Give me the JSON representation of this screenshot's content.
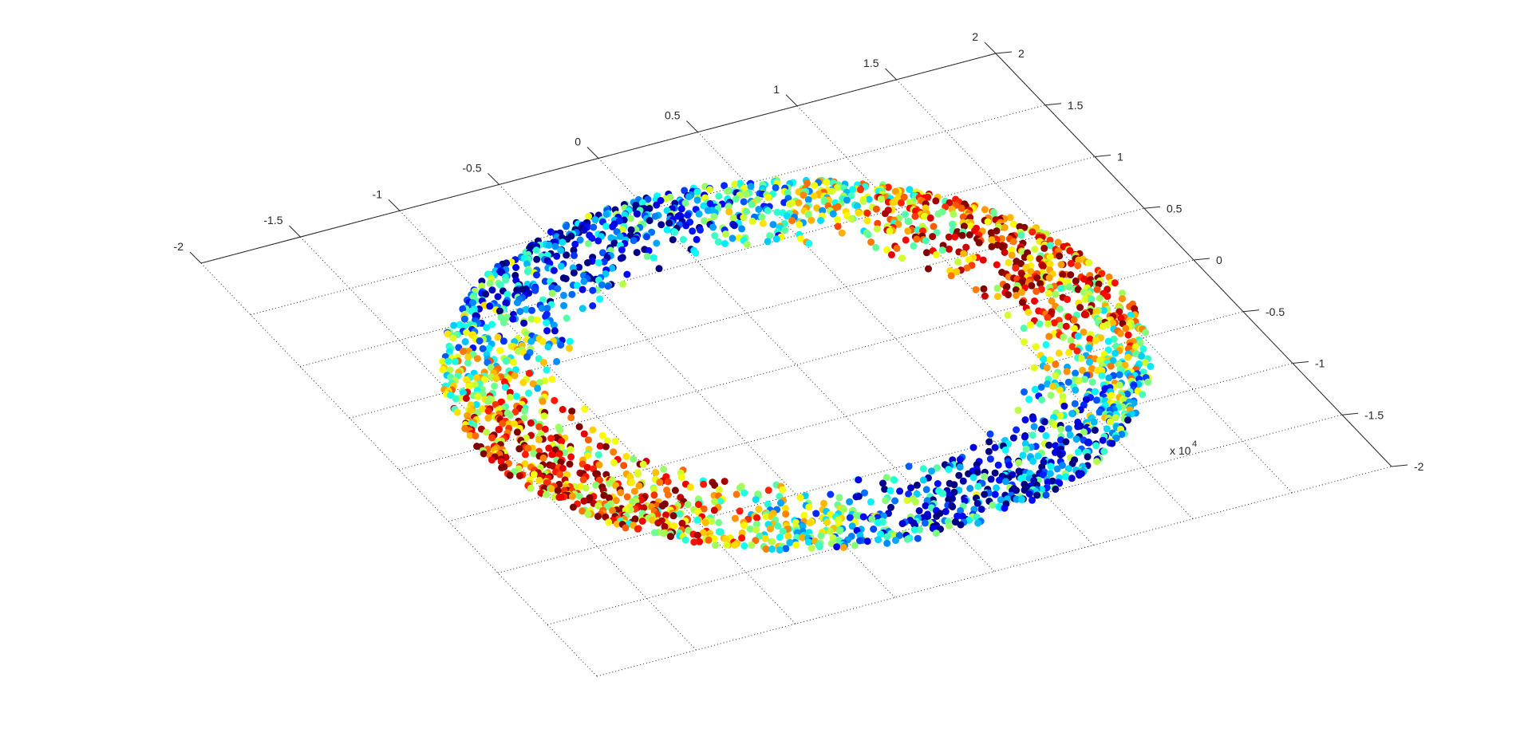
{
  "chart_data": {
    "type": "scatter",
    "projection": "3d",
    "title": "",
    "xlabel": "",
    "ylabel": "",
    "zlabel": "",
    "xlim": [
      -2,
      2
    ],
    "ylim": [
      -2,
      2
    ],
    "grid": true,
    "legend": "none",
    "colormap": "jet",
    "x_ticks": [
      "-2",
      "-1.5",
      "-1",
      "-0.5",
      "0",
      "0.5",
      "1",
      "1.5",
      "2"
    ],
    "y_ticks": [
      "2",
      "1.5",
      "1",
      "0.5",
      "0",
      "-0.5",
      "-1",
      "-1.5",
      "-2"
    ],
    "x_tick_values": [
      -2,
      -1.5,
      -1,
      -0.5,
      0,
      0.5,
      1,
      1.5,
      2
    ],
    "y_tick_values": [
      2,
      1.5,
      1,
      0.5,
      0,
      -0.5,
      -1,
      -1.5,
      -2
    ],
    "exponent_label": "x 10",
    "exponent_power": "4",
    "series": [
      {
        "shape": "annulus",
        "inner_radius": 1.0,
        "outer_radius": 1.6,
        "center": [
          0,
          0
        ],
        "point_count": 2600,
        "marker": "filled-circle",
        "color_by": "height"
      }
    ]
  }
}
